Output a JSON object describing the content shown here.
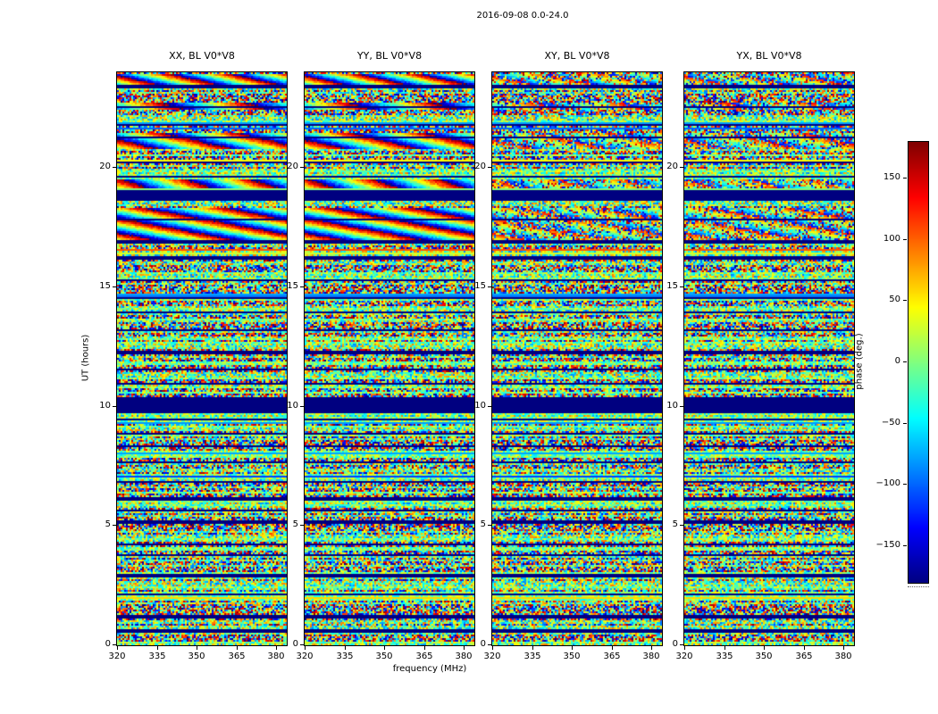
{
  "chart_data": {
    "type": "heatmap",
    "title": "2016-09-08 0.0-24.0",
    "date": "2016-09-08",
    "ut_range_hours": [
      0.0,
      24.0
    ],
    "baseline": "V0*V8",
    "polarizations": [
      "XX",
      "YY",
      "XY",
      "YX"
    ],
    "panels": [
      {
        "title": "XX, BL V0*V8",
        "pol": "XX"
      },
      {
        "title": "YY, BL V0*V8",
        "pol": "YY"
      },
      {
        "title": "XY, BL V0*V8",
        "pol": "XY"
      },
      {
        "title": "YX, BL V0*V8",
        "pol": "YX"
      }
    ],
    "xlabel": "frequency (MHz)",
    "ylabel": "UT (hours)",
    "x_range": [
      320,
      384
    ],
    "y_range": [
      0,
      24
    ],
    "x_ticks": {
      "labels": [
        "320",
        "335",
        "350",
        "365",
        "380"
      ],
      "values": [
        320,
        335,
        350,
        365,
        380
      ]
    },
    "y_ticks": {
      "labels": [
        "0",
        "5",
        "10",
        "15",
        "20"
      ],
      "values": [
        0,
        5,
        10,
        15,
        20
      ]
    },
    "colorbar": {
      "label": "phase (deg.)",
      "tick_labels": [
        "150",
        "100",
        "50",
        "0",
        "−50",
        "−100",
        "−150"
      ],
      "tick_values": [
        150,
        100,
        50,
        0,
        -50,
        -100,
        -150
      ],
      "vmin": -180,
      "vmax": 180,
      "colormap": "jet"
    },
    "features": {
      "flagged_time_ranges_hours": [
        [
          9.75,
          10.4
        ],
        [
          18.6,
          19.1
        ]
      ],
      "coherent_fringe_time_ranges_hours": [
        [
          16.95,
          18.35
        ],
        [
          19.15,
          19.55
        ],
        [
          20.8,
          21.45
        ],
        [
          22.4,
          22.75
        ],
        [
          23.3,
          23.92
        ]
      ],
      "description": "Four waterfall panels of visibility phase vs frequency (320-384 MHz) and UT (0-24 h) for baseline V0*V8. Random ±180° phase noise over most of the track with many thin dark-blue flagged rows; solid dark-blue flagged bands near 10 h and 18.8 h; smooth rainbow fringe patterns (coherent phase ramps) near 17-18.3 h, 19.3 h, 21 h and 23.5 h, strong in parallel hands XX/YY and weaker/noisier in cross hands XY/YX."
    }
  }
}
